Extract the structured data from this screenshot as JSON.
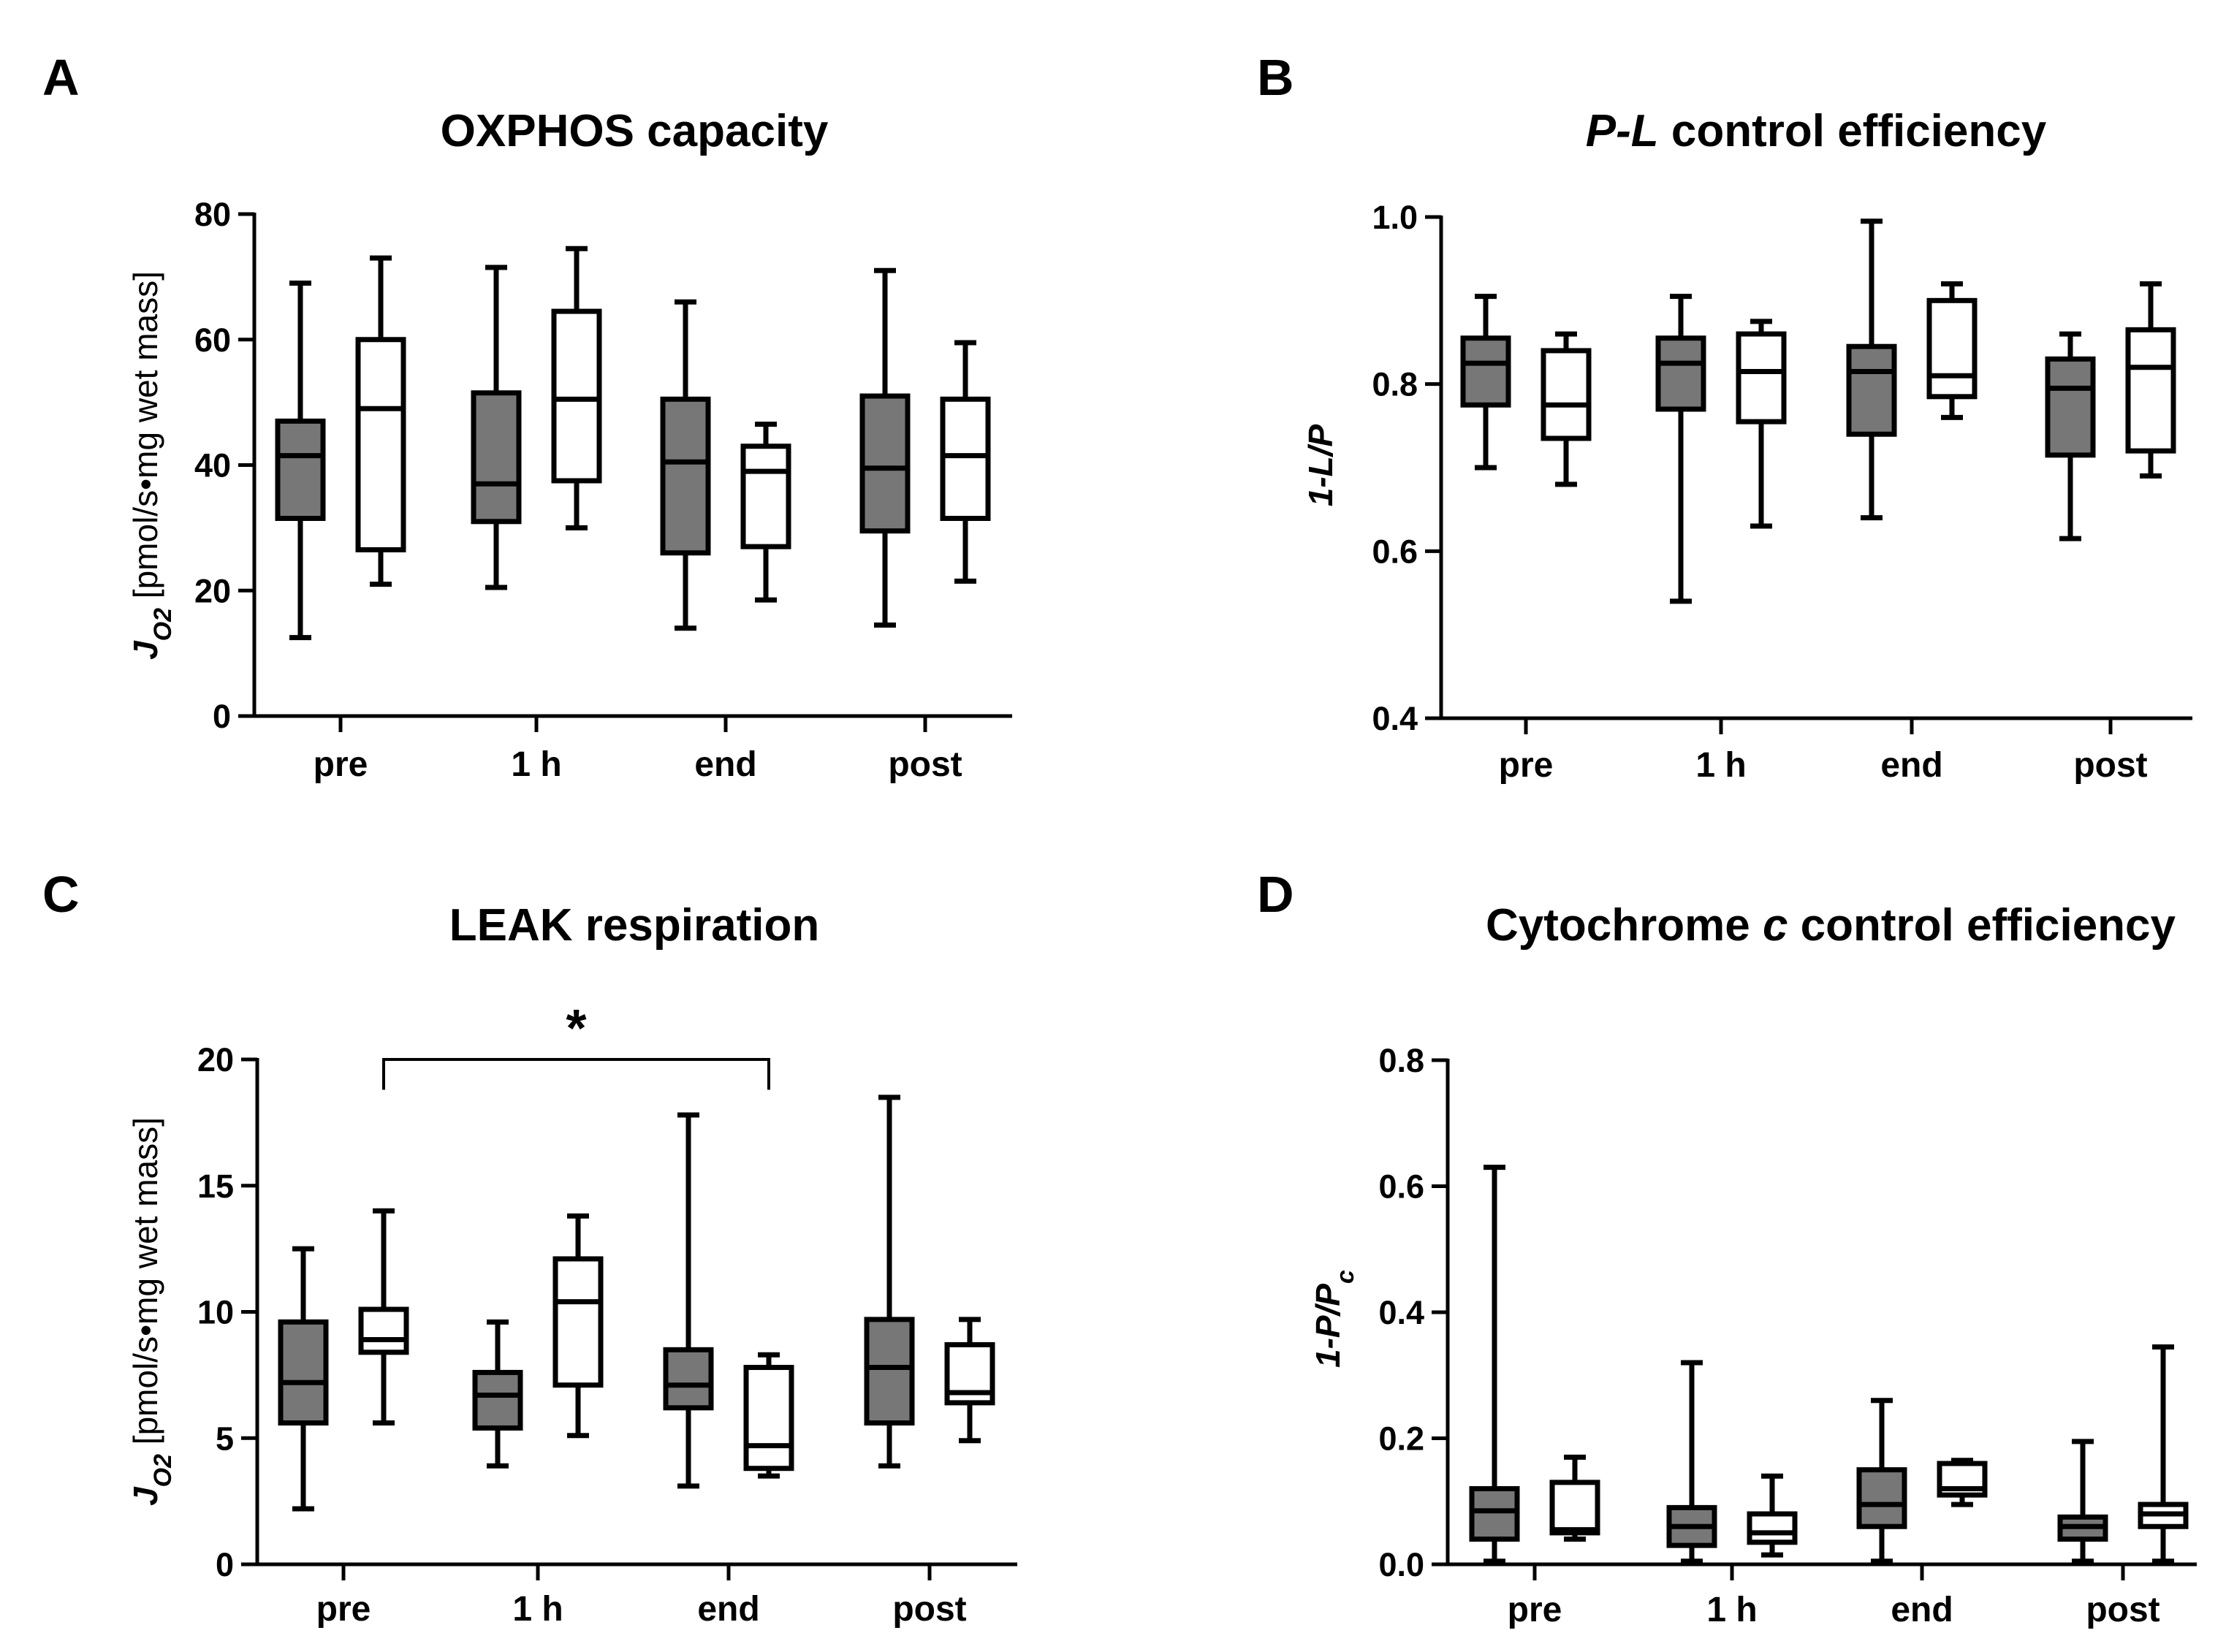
{
  "colors": {
    "filled": "#777777",
    "open": "#ffffff",
    "stroke": "#000000"
  },
  "legend": [],
  "chart_data": [
    {
      "letter": "A",
      "type": "box",
      "title": "OXPHOS capacity",
      "title_parts": [
        {
          "text": "OXPHOS capacity",
          "italic": false
        }
      ],
      "ylabel": "J_O2 [pmol/s•mg wet mass]",
      "ylabel_parts": [
        {
          "text": "J",
          "italic": true
        },
        {
          "text": "O2",
          "sub": true,
          "italic": true
        },
        {
          "text": " [pmol/s•mg wet mass]",
          "italic": false
        }
      ],
      "ylim": [
        0,
        80
      ],
      "yticks": [
        0,
        20,
        40,
        60,
        80
      ],
      "tick_labels": [
        "0",
        "20",
        "40",
        "60",
        "80"
      ],
      "categories": [
        "pre",
        "1 h",
        "end",
        "post"
      ],
      "series": [
        {
          "name": "filled",
          "boxes": [
            {
              "min": 12.5,
              "q1": 31.5,
              "median": 41.5,
              "q3": 47.0,
              "max": 69.0
            },
            {
              "min": 20.5,
              "q1": 31.0,
              "median": 37.0,
              "q3": 51.5,
              "max": 71.5
            },
            {
              "min": 14.0,
              "q1": 26.0,
              "median": 40.5,
              "q3": 50.5,
              "max": 66.0
            },
            {
              "min": 14.5,
              "q1": 29.5,
              "median": 39.5,
              "q3": 51.0,
              "max": 71.0
            }
          ]
        },
        {
          "name": "open",
          "boxes": [
            {
              "min": 21.0,
              "q1": 26.5,
              "median": 49.0,
              "q3": 60.0,
              "max": 73.0
            },
            {
              "min": 30.0,
              "q1": 37.5,
              "median": 50.5,
              "q3": 64.5,
              "max": 74.5
            },
            {
              "min": 18.5,
              "q1": 27.0,
              "median": 39.0,
              "q3": 43.0,
              "max": 46.5
            },
            {
              "min": 21.5,
              "q1": 31.5,
              "median": 41.5,
              "q3": 50.5,
              "max": 59.5
            }
          ]
        }
      ]
    },
    {
      "letter": "B",
      "type": "box",
      "title": "P-L control efficiency",
      "title_parts": [
        {
          "text": "P-L",
          "italic": true
        },
        {
          "text": " control efficiency",
          "italic": false
        }
      ],
      "ylabel": "1-L/P",
      "ylabel_parts": [
        {
          "text": "1-",
          "italic": true
        },
        {
          "text": "L/P",
          "italic": true
        }
      ],
      "ylim": [
        0.4,
        1.0
      ],
      "yticks": [
        0.4,
        0.6,
        0.8,
        1.0
      ],
      "tick_labels": [
        "0.4",
        "0.6",
        "0.8",
        "1.0"
      ],
      "categories": [
        "pre",
        "1 h",
        "end",
        "post"
      ],
      "series": [
        {
          "name": "filled",
          "boxes": [
            {
              "min": 0.7,
              "q1": 0.775,
              "median": 0.825,
              "q3": 0.855,
              "max": 0.905
            },
            {
              "min": 0.54,
              "q1": 0.77,
              "median": 0.825,
              "q3": 0.855,
              "max": 0.905
            },
            {
              "min": 0.64,
              "q1": 0.74,
              "median": 0.815,
              "q3": 0.845,
              "max": 0.995
            },
            {
              "min": 0.615,
              "q1": 0.715,
              "median": 0.795,
              "q3": 0.83,
              "max": 0.86
            }
          ]
        },
        {
          "name": "open",
          "boxes": [
            {
              "min": 0.68,
              "q1": 0.735,
              "median": 0.775,
              "q3": 0.84,
              "max": 0.86
            },
            {
              "min": 0.63,
              "q1": 0.755,
              "median": 0.815,
              "q3": 0.86,
              "max": 0.875
            },
            {
              "min": 0.76,
              "q1": 0.785,
              "median": 0.81,
              "q3": 0.9,
              "max": 0.92
            },
            {
              "min": 0.69,
              "q1": 0.72,
              "median": 0.82,
              "q3": 0.865,
              "max": 0.92
            }
          ]
        }
      ]
    },
    {
      "letter": "C",
      "type": "box",
      "title": "LEAK respiration",
      "title_parts": [
        {
          "text": "LEAK respiration",
          "italic": false
        }
      ],
      "ylabel": "J_O2 [pmol/s•mg wet mass]",
      "ylabel_parts": [
        {
          "text": "J",
          "italic": true
        },
        {
          "text": "O2",
          "sub": true,
          "italic": true
        },
        {
          "text": " [pmol/s•mg wet mass]",
          "italic": false
        }
      ],
      "ylim": [
        0,
        20
      ],
      "yticks": [
        0,
        5,
        10,
        15,
        20
      ],
      "tick_labels": [
        "0",
        "5",
        "10",
        "15",
        "20"
      ],
      "categories": [
        "pre",
        "1 h",
        "end",
        "post"
      ],
      "series": [
        {
          "name": "filled",
          "boxes": [
            {
              "min": 2.2,
              "q1": 5.6,
              "median": 7.2,
              "q3": 9.6,
              "max": 12.5
            },
            {
              "min": 3.9,
              "q1": 5.4,
              "median": 6.7,
              "q3": 7.6,
              "max": 9.6
            },
            {
              "min": 3.1,
              "q1": 6.2,
              "median": 7.1,
              "q3": 8.5,
              "max": 17.8
            },
            {
              "min": 3.9,
              "q1": 5.6,
              "median": 7.8,
              "q3": 9.7,
              "max": 18.5
            }
          ]
        },
        {
          "name": "open",
          "boxes": [
            {
              "min": 5.6,
              "q1": 8.4,
              "median": 8.9,
              "q3": 10.1,
              "max": 14.0
            },
            {
              "min": 5.1,
              "q1": 7.1,
              "median": 10.4,
              "q3": 12.1,
              "max": 13.8
            },
            {
              "min": 3.5,
              "q1": 3.8,
              "median": 4.7,
              "q3": 7.8,
              "max": 8.3
            },
            {
              "min": 4.9,
              "q1": 6.4,
              "median": 6.8,
              "q3": 8.7,
              "max": 9.7
            }
          ]
        }
      ],
      "annotations": [
        {
          "text": "*",
          "from": {
            "category": 0,
            "series": 1
          },
          "to": {
            "category": 2,
            "series": 1
          },
          "y": 20.0,
          "drop": 1.2
        }
      ]
    },
    {
      "letter": "D",
      "type": "box",
      "title": "Cytochrome c control efficiency",
      "title_parts": [
        {
          "text": "Cytochrome ",
          "italic": false
        },
        {
          "text": "c",
          "italic": true
        },
        {
          "text": " control efficiency",
          "italic": false
        }
      ],
      "ylabel": "1-P/P_c",
      "ylabel_parts": [
        {
          "text": "1-",
          "italic": true
        },
        {
          "text": "P/P",
          "italic": true
        },
        {
          "text": "c",
          "sub": true,
          "italic": true
        }
      ],
      "ylim": [
        0.0,
        0.8
      ],
      "yticks": [
        0.0,
        0.2,
        0.4,
        0.6,
        0.8
      ],
      "tick_labels": [
        "0.0",
        "0.2",
        "0.4",
        "0.6",
        "0.8"
      ],
      "categories": [
        "pre",
        "1 h",
        "end",
        "post"
      ],
      "series": [
        {
          "name": "filled",
          "boxes": [
            {
              "min": 0.005,
              "q1": 0.04,
              "median": 0.085,
              "q3": 0.12,
              "max": 0.63
            },
            {
              "min": 0.005,
              "q1": 0.03,
              "median": 0.06,
              "q3": 0.09,
              "max": 0.32
            },
            {
              "min": 0.005,
              "q1": 0.06,
              "median": 0.095,
              "q3": 0.15,
              "max": 0.26
            },
            {
              "min": 0.005,
              "q1": 0.04,
              "median": 0.06,
              "q3": 0.075,
              "max": 0.195
            }
          ]
        },
        {
          "name": "open",
          "boxes": [
            {
              "min": 0.04,
              "q1": 0.05,
              "median": 0.055,
              "q3": 0.13,
              "max": 0.17
            },
            {
              "min": 0.015,
              "q1": 0.035,
              "median": 0.05,
              "q3": 0.08,
              "max": 0.14
            },
            {
              "min": 0.095,
              "q1": 0.11,
              "median": 0.12,
              "q3": 0.16,
              "max": 0.165
            },
            {
              "min": 0.005,
              "q1": 0.06,
              "median": 0.08,
              "q3": 0.095,
              "max": 0.345
            }
          ]
        }
      ]
    }
  ]
}
